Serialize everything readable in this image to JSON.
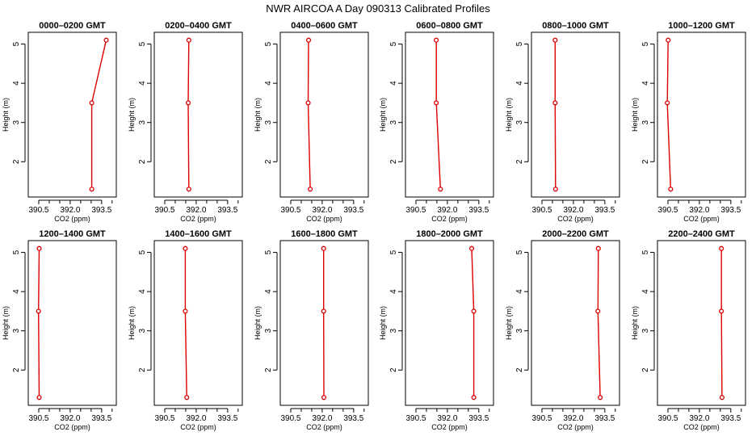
{
  "figure": {
    "title": "NWR AIRCOA A  Day 090313  Calibrated Profiles"
  },
  "colors": {
    "profile": "#dd0000",
    "axis": "#000000",
    "background": "#ffffff"
  },
  "chart_data": [
    {
      "type": "line",
      "title": "0000–0200 GMT",
      "xlabel": "CO2 (ppm)",
      "ylabel": "Height (m)",
      "xlim": [
        390.0,
        394.2
      ],
      "ylim": [
        1.1,
        5.3
      ],
      "xticks": [
        "390.5",
        "392.0",
        "393.5"
      ],
      "yticks": [
        "2",
        "3",
        "4",
        "5"
      ],
      "series": [
        {
          "x": [
            393.03,
            393.03,
            393.72
          ],
          "y": [
            1.3,
            3.5,
            5.1
          ]
        }
      ]
    },
    {
      "type": "line",
      "title": "0200–0400 GMT",
      "xlabel": "CO2 (ppm)",
      "ylabel": "Height (m)",
      "xlim": [
        390.0,
        394.2
      ],
      "ylim": [
        1.1,
        5.3
      ],
      "xticks": [
        "390.5",
        "392.0",
        "393.5"
      ],
      "yticks": [
        "2",
        "3",
        "4",
        "5"
      ],
      "series": [
        {
          "x": [
            391.65,
            391.62,
            391.65
          ],
          "y": [
            1.3,
            3.5,
            5.1
          ]
        }
      ]
    },
    {
      "type": "line",
      "title": "0400–0600 GMT",
      "xlabel": "CO2 (ppm)",
      "ylabel": "Height (m)",
      "xlim": [
        390.0,
        394.2
      ],
      "ylim": [
        1.1,
        5.3
      ],
      "xticks": [
        "390.5",
        "392.0",
        "393.5"
      ],
      "yticks": [
        "2",
        "3",
        "4",
        "5"
      ],
      "series": [
        {
          "x": [
            391.43,
            391.33,
            391.35
          ],
          "y": [
            1.3,
            3.5,
            5.1
          ]
        }
      ]
    },
    {
      "type": "line",
      "title": "0600–0800 GMT",
      "xlabel": "CO2 (ppm)",
      "ylabel": "Height (m)",
      "xlim": [
        390.0,
        394.2
      ],
      "ylim": [
        1.1,
        5.3
      ],
      "xticks": [
        "390.5",
        "392.0",
        "393.5"
      ],
      "yticks": [
        "2",
        "3",
        "4",
        "5"
      ],
      "series": [
        {
          "x": [
            391.67,
            391.47,
            391.47
          ],
          "y": [
            1.3,
            3.5,
            5.1
          ]
        }
      ]
    },
    {
      "type": "line",
      "title": "0800–1000 GMT",
      "xlabel": "CO2 (ppm)",
      "ylabel": "Height (m)",
      "xlim": [
        390.0,
        394.2
      ],
      "ylim": [
        1.1,
        5.3
      ],
      "xticks": [
        "390.5",
        "392.0",
        "393.5"
      ],
      "yticks": [
        "2",
        "3",
        "4",
        "5"
      ],
      "series": [
        {
          "x": [
            391.15,
            391.13,
            391.13
          ],
          "y": [
            1.3,
            3.5,
            5.1
          ]
        }
      ]
    },
    {
      "type": "line",
      "title": "1000–1200 GMT",
      "xlabel": "CO2 (ppm)",
      "ylabel": "Height (m)",
      "xlim": [
        390.0,
        394.2
      ],
      "ylim": [
        1.1,
        5.3
      ],
      "xticks": [
        "390.5",
        "392.0",
        "393.5"
      ],
      "yticks": [
        "2",
        "3",
        "4",
        "5"
      ],
      "series": [
        {
          "x": [
            390.63,
            390.47,
            390.51
          ],
          "y": [
            1.3,
            3.5,
            5.1
          ]
        }
      ]
    },
    {
      "type": "line",
      "title": "1200–1400 GMT",
      "xlabel": "CO2 (ppm)",
      "ylabel": "Height (m)",
      "xlim": [
        390.0,
        394.2
      ],
      "ylim": [
        1.1,
        5.3
      ],
      "xticks": [
        "390.5",
        "392.0",
        "393.5"
      ],
      "yticks": [
        "2",
        "3",
        "4",
        "5"
      ],
      "series": [
        {
          "x": [
            390.52,
            390.49,
            390.52
          ],
          "y": [
            1.3,
            3.5,
            5.1
          ]
        }
      ]
    },
    {
      "type": "line",
      "title": "1400–1600 GMT",
      "xlabel": "CO2 (ppm)",
      "ylabel": "Height (m)",
      "xlim": [
        390.0,
        394.2
      ],
      "ylim": [
        1.1,
        5.3
      ],
      "xticks": [
        "390.5",
        "392.0",
        "393.5"
      ],
      "yticks": [
        "2",
        "3",
        "4",
        "5"
      ],
      "series": [
        {
          "x": [
            391.55,
            391.48,
            391.48
          ],
          "y": [
            1.3,
            3.5,
            5.1
          ]
        }
      ]
    },
    {
      "type": "line",
      "title": "1600–1800 GMT",
      "xlabel": "CO2 (ppm)",
      "ylabel": "Height (m)",
      "xlim": [
        390.0,
        394.2
      ],
      "ylim": [
        1.1,
        5.3
      ],
      "xticks": [
        "390.5",
        "392.0",
        "393.5"
      ],
      "yticks": [
        "2",
        "3",
        "4",
        "5"
      ],
      "series": [
        {
          "x": [
            392.08,
            392.07,
            392.07
          ],
          "y": [
            1.3,
            3.5,
            5.1
          ]
        }
      ]
    },
    {
      "type": "line",
      "title": "1800–2000 GMT",
      "xlabel": "CO2 (ppm)",
      "ylabel": "Height (m)",
      "xlim": [
        390.0,
        394.2
      ],
      "ylim": [
        1.1,
        5.3
      ],
      "xticks": [
        "390.5",
        "392.0",
        "393.5"
      ],
      "yticks": [
        "2",
        "3",
        "4",
        "5"
      ],
      "series": [
        {
          "x": [
            393.26,
            393.26,
            393.16
          ],
          "y": [
            1.3,
            3.5,
            5.1
          ]
        }
      ]
    },
    {
      "type": "line",
      "title": "2000–2200 GMT",
      "xlabel": "CO2 (ppm)",
      "ylabel": "Height (m)",
      "xlim": [
        390.0,
        394.2
      ],
      "ylim": [
        1.1,
        5.3
      ],
      "xticks": [
        "390.5",
        "392.0",
        "393.5"
      ],
      "yticks": [
        "2",
        "3",
        "4",
        "5"
      ],
      "series": [
        {
          "x": [
            393.28,
            393.17,
            393.19
          ],
          "y": [
            1.3,
            3.5,
            5.1
          ]
        }
      ]
    },
    {
      "type": "line",
      "title": "2200–2400 GMT",
      "xlabel": "CO2 (ppm)",
      "ylabel": "Height (m)",
      "xlim": [
        390.0,
        394.2
      ],
      "ylim": [
        1.1,
        5.3
      ],
      "xticks": [
        "390.5",
        "392.0",
        "393.5"
      ],
      "yticks": [
        "2",
        "3",
        "4",
        "5"
      ],
      "series": [
        {
          "x": [
            393.08,
            393.05,
            393.05
          ],
          "y": [
            1.3,
            3.5,
            5.1
          ]
        }
      ]
    }
  ]
}
